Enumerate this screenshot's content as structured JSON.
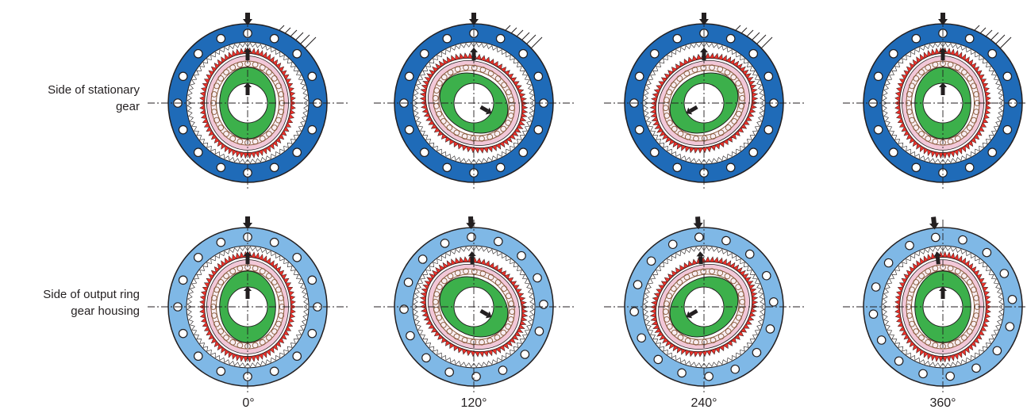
{
  "rows": [
    {
      "label_line1": "Side of stationary",
      "label_line2": "gear",
      "ring_color": "#1f6bb8",
      "fixed": true
    },
    {
      "label_line1": "Side of output ring",
      "label_line2": "gear housing",
      "ring_color": "#7fb8e6",
      "fixed": false
    }
  ],
  "stages": [
    {
      "angle_label": "0°",
      "wave_generator_deg": 0,
      "output_rotation_deg": 0
    },
    {
      "angle_label": "120°",
      "wave_generator_deg": 120,
      "output_rotation_deg": -2
    },
    {
      "angle_label": "240°",
      "wave_generator_deg": 240,
      "output_rotation_deg": -4
    },
    {
      "angle_label": "360°",
      "wave_generator_deg": 360,
      "output_rotation_deg": -6
    }
  ],
  "colors": {
    "outline": "#231f20",
    "teeth_white": "#ffffff",
    "flexspline_red": "#e8312a",
    "bearing_pink": "#f2c8d8",
    "balls_brown": "#8a5a3c",
    "wave_generator_green": "#3cb04b",
    "arrow": "#231f20"
  }
}
